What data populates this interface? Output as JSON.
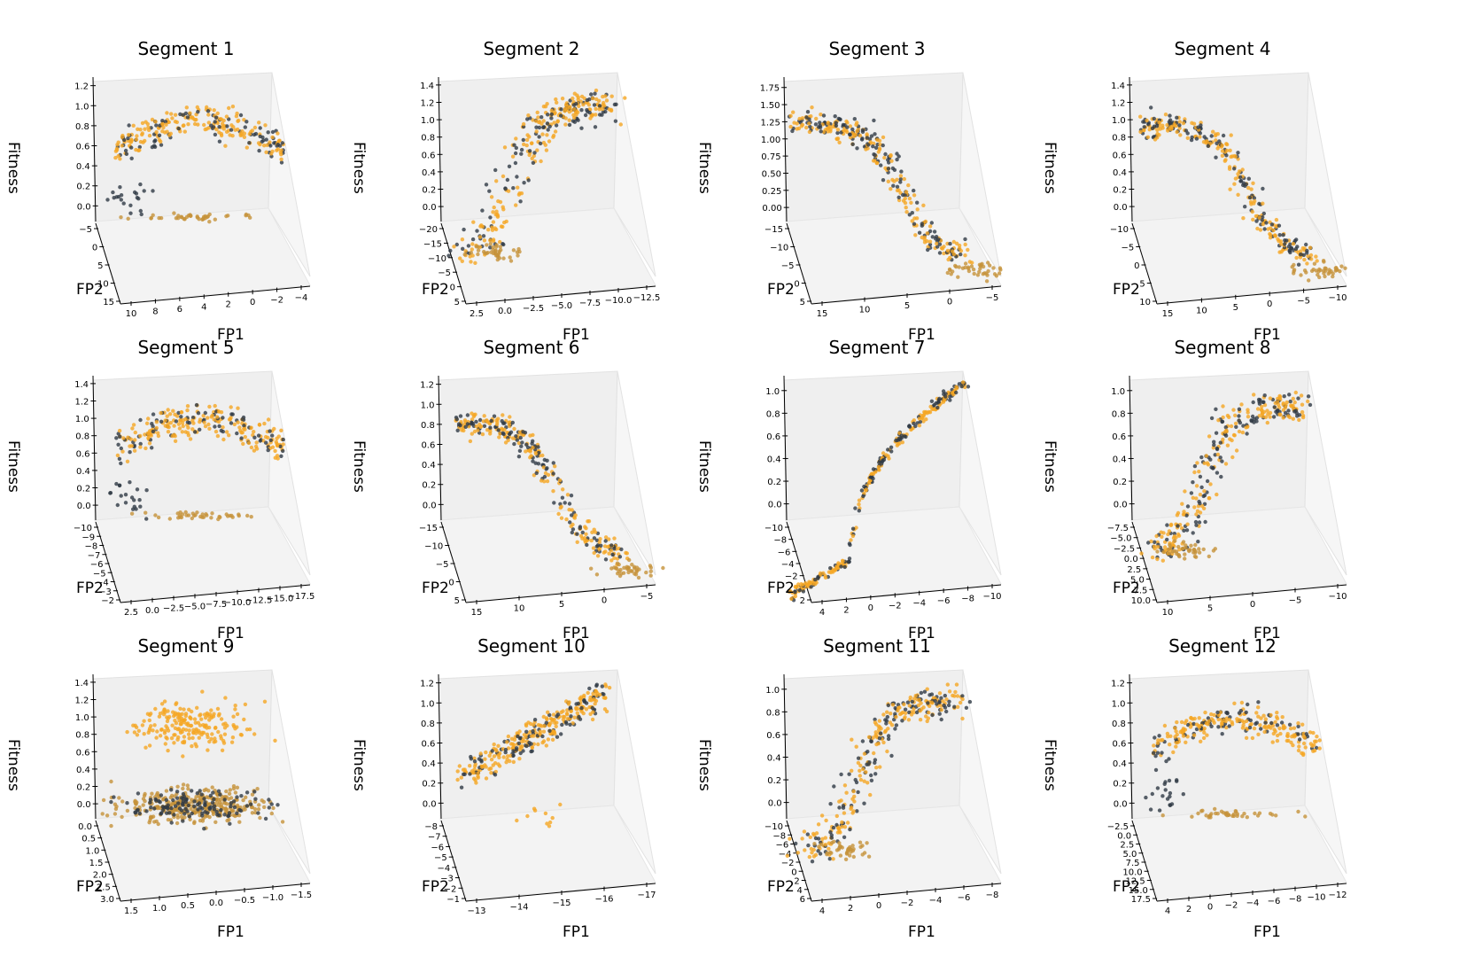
{
  "colors": {
    "series_a": "#f5a623",
    "series_b": "#2f3a45",
    "pane_back": "#efefef",
    "pane_floor": "#f3f3f3"
  },
  "chart_data": [
    {
      "type": "scatter",
      "title": "Segment 1",
      "xlabel": "FP1",
      "ylabel": "FP2",
      "zlabel": "Fitness",
      "xticks": [
        "10",
        "8",
        "6",
        "4",
        "2",
        "0",
        "−2",
        "−4"
      ],
      "yticks": [
        "−5",
        "0",
        "5",
        "10",
        "15"
      ],
      "zticks": [
        "0.0",
        "0.2",
        "0.4",
        "0.6",
        "0.8",
        "1.0",
        "1.2"
      ],
      "zlim": [
        -0.05,
        1.25
      ],
      "shape": "dome",
      "series": [
        {
          "values": [
            [
              8.5,
              -2.0,
              0.68
            ],
            [
              6.0,
              0.0,
              0.78
            ],
            [
              4.0,
              -1.0,
              0.7
            ],
            [
              2.0,
              1.0,
              0.55
            ],
            [
              0.0,
              0.0,
              0.42
            ],
            [
              5.0,
              3.0,
              0.0
            ],
            [
              2.5,
              8.0,
              0.0
            ]
          ]
        },
        {
          "values": [
            [
              8.0,
              -1.0,
              0.58
            ],
            [
              5.0,
              0.0,
              0.6
            ],
            [
              3.0,
              1.0,
              0.5
            ],
            [
              0.5,
              0.5,
              0.35
            ],
            [
              6.0,
              4.0,
              0.0
            ],
            [
              2.0,
              6.0,
              0.0
            ]
          ]
        }
      ]
    },
    {
      "type": "scatter",
      "title": "Segment 2",
      "xlabel": "FP1",
      "ylabel": "FP2",
      "zlabel": "Fitness",
      "xticks": [
        "2.5",
        "0.0",
        "−2.5",
        "−5.0",
        "−7.5",
        "−10.0",
        "−12.5"
      ],
      "yticks": [
        "−20",
        "−15",
        "−10",
        "−5",
        "0",
        "5"
      ],
      "zticks": [
        "0.0",
        "0.2",
        "0.4",
        "0.6",
        "0.8",
        "1.0",
        "1.2",
        "1.4"
      ],
      "zlim": [
        -0.05,
        1.45
      ],
      "shape": "ramp-up",
      "series": [
        {
          "values": [
            [
              2.0,
              -3.0,
              0.05
            ],
            [
              0.0,
              -8.0,
              0.3
            ],
            [
              -2.5,
              -12.0,
              0.65
            ],
            [
              -5.0,
              -14.0,
              0.8
            ],
            [
              -8.0,
              -16.0,
              0.9
            ],
            [
              -11.0,
              -18.0,
              0.95
            ]
          ]
        },
        {
          "values": [
            [
              1.5,
              -5.0,
              0.1
            ],
            [
              -1.0,
              -10.0,
              0.45
            ],
            [
              -4.0,
              -13.0,
              0.75
            ],
            [
              -9.0,
              -17.0,
              0.85
            ]
          ]
        }
      ]
    },
    {
      "type": "scatter",
      "title": "Segment 3",
      "xlabel": "FP1",
      "ylabel": "FP2",
      "zlabel": "Fitness",
      "xticks": [
        "15",
        "10",
        "5",
        "0",
        "−5"
      ],
      "yticks": [
        "−15",
        "−10",
        "−5",
        "0",
        "5"
      ],
      "zticks": [
        "0.00",
        "0.25",
        "0.50",
        "0.75",
        "1.00",
        "1.25",
        "1.50",
        "1.75"
      ],
      "zlim": [
        -0.05,
        1.85
      ],
      "shape": "ramp-down",
      "series": [
        {
          "values": [
            [
              14.0,
              -12.0,
              0.8
            ],
            [
              10.0,
              -10.0,
              0.7
            ],
            [
              6.0,
              -6.0,
              0.5
            ],
            [
              3.0,
              -2.0,
              0.1
            ],
            [
              -3.0,
              0.0,
              0.0
            ]
          ]
        },
        {
          "values": [
            [
              13.0,
              -11.0,
              0.75
            ],
            [
              8.0,
              -8.0,
              0.6
            ],
            [
              4.0,
              -4.0,
              0.3
            ],
            [
              0.0,
              -1.0,
              0.02
            ]
          ]
        }
      ]
    },
    {
      "type": "scatter",
      "title": "Segment 4",
      "xlabel": "FP1",
      "ylabel": "FP2",
      "zlabel": "Fitness",
      "xticks": [
        "15",
        "10",
        "5",
        "0",
        "−5",
        "−10"
      ],
      "yticks": [
        "−10",
        "−5",
        "0",
        "5",
        "10"
      ],
      "zticks": [
        "0.0",
        "0.2",
        "0.4",
        "0.6",
        "0.8",
        "1.0",
        "1.2",
        "1.4"
      ],
      "zlim": [
        -0.05,
        1.45
      ],
      "shape": "ramp-down",
      "series": [
        {
          "values": [
            [
              14.0,
              -8.0,
              0.85
            ],
            [
              10.0,
              -6.0,
              0.78
            ],
            [
              7.0,
              -3.0,
              0.6
            ]
          ]
        },
        {
          "values": [
            [
              13.0,
              -8.0,
              0.82
            ],
            [
              9.0,
              -5.0,
              0.7
            ],
            [
              6.0,
              -2.0,
              0.3
            ],
            [
              2.0,
              2.0,
              0.0
            ],
            [
              -5.0,
              5.0,
              0.0
            ]
          ]
        }
      ]
    },
    {
      "type": "scatter",
      "title": "Segment 5",
      "xlabel": "FP1",
      "ylabel": "FP2",
      "zlabel": "Fitness",
      "xticks": [
        "2.5",
        "0.0",
        "−2.5",
        "−5.0",
        "−7.5",
        "−10.0",
        "−12.5",
        "−15.0",
        "−17.5"
      ],
      "yticks": [
        "−10",
        "−9",
        "−8",
        "−7",
        "−6",
        "−5",
        "−4",
        "−3",
        "−2"
      ],
      "zticks": [
        "0.0",
        "0.2",
        "0.4",
        "0.6",
        "0.8",
        "1.0",
        "1.2",
        "1.4"
      ],
      "zlim": [
        -0.05,
        1.45
      ],
      "shape": "dome",
      "series": [
        {
          "values": [
            [
              0.0,
              -6.0,
              0.45
            ],
            [
              -3.0,
              -7.0,
              0.6
            ],
            [
              -6.0,
              -8.0,
              0.65
            ],
            [
              -10.0,
              -9.0,
              0.55
            ],
            [
              -14.0,
              -9.5,
              0.4
            ]
          ]
        },
        {
          "values": [
            [
              1.0,
              -5.0,
              0.3
            ],
            [
              -4.0,
              -7.0,
              0.55
            ],
            [
              -8.0,
              -8.5,
              0.6
            ],
            [
              -12.0,
              -9.0,
              0.45
            ]
          ]
        }
      ]
    },
    {
      "type": "scatter",
      "title": "Segment 6",
      "xlabel": "FP1",
      "ylabel": "FP2",
      "zlabel": "Fitness",
      "xticks": [
        "15",
        "10",
        "5",
        "0",
        "−5"
      ],
      "yticks": [
        "−15",
        "−10",
        "−5",
        "0",
        "5"
      ],
      "zticks": [
        "0.0",
        "0.2",
        "0.4",
        "0.6",
        "0.8",
        "1.0",
        "1.2"
      ],
      "zlim": [
        -0.05,
        1.25
      ],
      "shape": "ramp-down",
      "series": [
        {
          "values": [
            [
              14.0,
              -12.0,
              0.85
            ],
            [
              10.0,
              -9.0,
              0.8
            ],
            [
              6.0,
              -5.0,
              0.55
            ],
            [
              3.0,
              -2.0,
              0.1
            ],
            [
              -2.0,
              0.0,
              0.0
            ]
          ]
        },
        {
          "values": [
            [
              13.0,
              -11.0,
              0.78
            ],
            [
              8.0,
              -7.0,
              0.65
            ],
            [
              4.0,
              -3.0,
              0.3
            ]
          ]
        }
      ]
    },
    {
      "type": "scatter",
      "title": "Segment 7",
      "xlabel": "FP1",
      "ylabel": "FP2",
      "zlabel": "Fitness",
      "xticks": [
        "4",
        "2",
        "0",
        "−2",
        "−4",
        "−6",
        "−8",
        "−10"
      ],
      "yticks": [
        "−10",
        "−8",
        "−6",
        "−4",
        "−2",
        "0",
        "2"
      ],
      "zticks": [
        "0.0",
        "0.2",
        "0.4",
        "0.6",
        "0.8",
        "1.0"
      ],
      "zlim": [
        -0.05,
        1.1
      ],
      "shape": "curve",
      "series": [
        {
          "values": [
            [
              4.0,
              2.0,
              0.0
            ],
            [
              1.0,
              -2.0,
              0.2
            ],
            [
              0.0,
              -4.0,
              0.55
            ],
            [
              -3.0,
              -6.0,
              0.8
            ],
            [
              -8.0,
              -9.0,
              1.0
            ]
          ]
        },
        {
          "values": [
            [
              0.5,
              -3.0,
              0.35
            ],
            [
              -1.5,
              -5.0,
              0.7
            ],
            [
              -6.0,
              -8.0,
              0.95
            ]
          ]
        }
      ]
    },
    {
      "type": "scatter",
      "title": "Segment 8",
      "xlabel": "FP1",
      "ylabel": "FP2",
      "zlabel": "Fitness",
      "xticks": [
        "10",
        "5",
        "0",
        "−5",
        "−10"
      ],
      "yticks": [
        "−7.5",
        "−5.0",
        "−2.5",
        "0.0",
        "2.5",
        "5.0",
        "7.5",
        "10.0"
      ],
      "zticks": [
        "0.0",
        "0.2",
        "0.4",
        "0.6",
        "0.8",
        "1.0"
      ],
      "zlim": [
        -0.05,
        1.1
      ],
      "shape": "ramp-up",
      "series": [
        {
          "values": [
            [
              9.0,
              8.0,
              0.05
            ],
            [
              5.0,
              3.0,
              0.1
            ],
            [
              1.0,
              -2.0,
              0.5
            ],
            [
              -1.0,
              -5.0,
              0.95
            ]
          ]
        },
        {
          "values": [
            [
              6.0,
              5.0,
              0.1
            ],
            [
              2.0,
              0.0,
              0.35
            ],
            [
              0.0,
              -4.0,
              0.85
            ]
          ]
        }
      ]
    },
    {
      "type": "scatter",
      "title": "Segment 9",
      "xlabel": "FP1",
      "ylabel": "FP2",
      "zlabel": "Fitness",
      "xticks": [
        "1.5",
        "1.0",
        "0.5",
        "0.0",
        "−0.5",
        "−1.0",
        "−1.5"
      ],
      "yticks": [
        "0.0",
        "0.5",
        "1.0",
        "1.5",
        "2.0",
        "2.5",
        "3.0"
      ],
      "zticks": [
        "0.0",
        "0.2",
        "0.4",
        "0.6",
        "0.8",
        "1.0",
        "1.2",
        "1.4"
      ],
      "zlim": [
        -0.05,
        1.45
      ],
      "shape": "layered",
      "series": [
        {
          "values": [
            [
              1.0,
              0.5,
              0.6
            ],
            [
              0.5,
              0.8,
              0.55
            ],
            [
              0.0,
              1.0,
              0.6
            ],
            [
              0.5,
              1.2,
              0.0
            ],
            [
              0.0,
              1.0,
              0.0
            ]
          ]
        },
        {
          "values": [
            [
              1.2,
              0.6,
              0.0
            ],
            [
              0.6,
              1.0,
              0.0
            ],
            [
              -0.2,
              1.2,
              0.0
            ]
          ]
        }
      ]
    },
    {
      "type": "scatter",
      "title": "Segment 10",
      "xlabel": "FP1",
      "ylabel": "FP2",
      "zlabel": "Fitness",
      "xticks": [
        "−13",
        "−14",
        "−15",
        "−16",
        "−17"
      ],
      "yticks": [
        "−8",
        "−7",
        "−6",
        "−5",
        "−4",
        "−3",
        "−2",
        "−1"
      ],
      "zticks": [
        "0.0",
        "0.2",
        "0.4",
        "0.6",
        "0.8",
        "1.0",
        "1.2"
      ],
      "zlim": [
        -0.05,
        1.25
      ],
      "shape": "diagonal",
      "series": [
        {
          "values": [
            [
              -13.0,
              -4.0,
              0.45
            ],
            [
              -14.0,
              -5.0,
              0.6
            ],
            [
              -15.0,
              -6.0,
              0.75
            ],
            [
              -16.0,
              -7.0,
              0.9
            ]
          ]
        },
        {
          "values": [
            [
              -13.2,
              -4.0,
              0.42
            ],
            [
              -14.5,
              -5.5,
              0.65
            ],
            [
              -15.8,
              -7.0,
              0.85
            ]
          ]
        }
      ]
    },
    {
      "type": "scatter",
      "title": "Segment 11",
      "xlabel": "FP1",
      "ylabel": "FP2",
      "zlabel": "Fitness",
      "xticks": [
        "4",
        "2",
        "0",
        "−2",
        "−4",
        "−6",
        "−8"
      ],
      "yticks": [
        "−10",
        "−8",
        "−6",
        "−4",
        "−2",
        "0",
        "2",
        "4",
        "6"
      ],
      "zticks": [
        "0.0",
        "0.2",
        "0.4",
        "0.6",
        "0.8",
        "1.0"
      ],
      "zlim": [
        -0.05,
        1.1
      ],
      "shape": "ramp-up",
      "series": [
        {
          "values": [
            [
              1.0,
              -2.0,
              0.4
            ],
            [
              0.0,
              -5.0,
              0.7
            ]
          ]
        },
        {
          "values": [
            [
              3.0,
              2.0,
              0.05
            ],
            [
              1.0,
              0.0,
              0.15
            ],
            [
              -1.0,
              -4.0,
              0.6
            ],
            [
              -3.0,
              -8.0,
              0.9
            ]
          ]
        }
      ]
    },
    {
      "type": "scatter",
      "title": "Segment 12",
      "xlabel": "FP1",
      "ylabel": "FP2",
      "zlabel": "Fitness",
      "xticks": [
        "4",
        "2",
        "0",
        "−2",
        "−4",
        "−6",
        "−8",
        "−10",
        "−12"
      ],
      "yticks": [
        "−2.5",
        "0.0",
        "2.5",
        "5.0",
        "7.5",
        "10.0",
        "12.5",
        "15.0",
        "17.5"
      ],
      "zticks": [
        "0.0",
        "0.2",
        "0.4",
        "0.6",
        "0.8",
        "1.0",
        "1.2"
      ],
      "zlim": [
        -0.05,
        1.25
      ],
      "shape": "dome",
      "series": [
        {
          "values": [
            [
              3.0,
              -2.0,
              0.2
            ],
            [
              0.0,
              -1.0,
              0.55
            ],
            [
              -3.0,
              0.0,
              0.7
            ],
            [
              -6.0,
              1.0,
              0.65
            ],
            [
              -10.0,
              2.0,
              0.45
            ]
          ]
        },
        {
          "values": [
            [
              2.0,
              -2.0,
              0.3
            ],
            [
              -1.0,
              -1.0,
              0.6
            ],
            [
              -5.0,
              0.5,
              0.6
            ],
            [
              -9.0,
              2.0,
              0.45
            ]
          ]
        }
      ]
    }
  ]
}
